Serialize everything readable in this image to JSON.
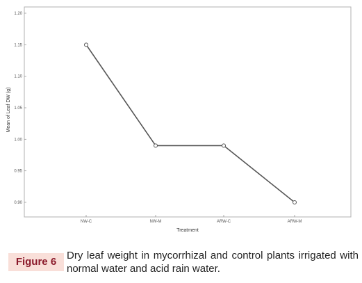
{
  "chart_data": {
    "type": "line",
    "categories": [
      "NW-C",
      "NW-M",
      "ARW-C",
      "ARW-M"
    ],
    "series": [
      {
        "values": [
          1.15,
          0.99,
          0.99,
          0.9
        ]
      }
    ],
    "y_ticks": [
      "0.90",
      "0.95",
      "1.00",
      "1.05",
      "1.10",
      "1.15",
      "1.20"
    ],
    "ylim": [
      0.9,
      1.2
    ],
    "xlabel": "Treatment",
    "ylabel": "Mean of Leaf DW (g)",
    "grid": false,
    "marker": "circle",
    "line_color": "#555555"
  },
  "caption": {
    "label": "Figure 6",
    "text": "Dry leaf weight in mycorrhizal and control plants irrigated with normal water and acid rain water."
  }
}
